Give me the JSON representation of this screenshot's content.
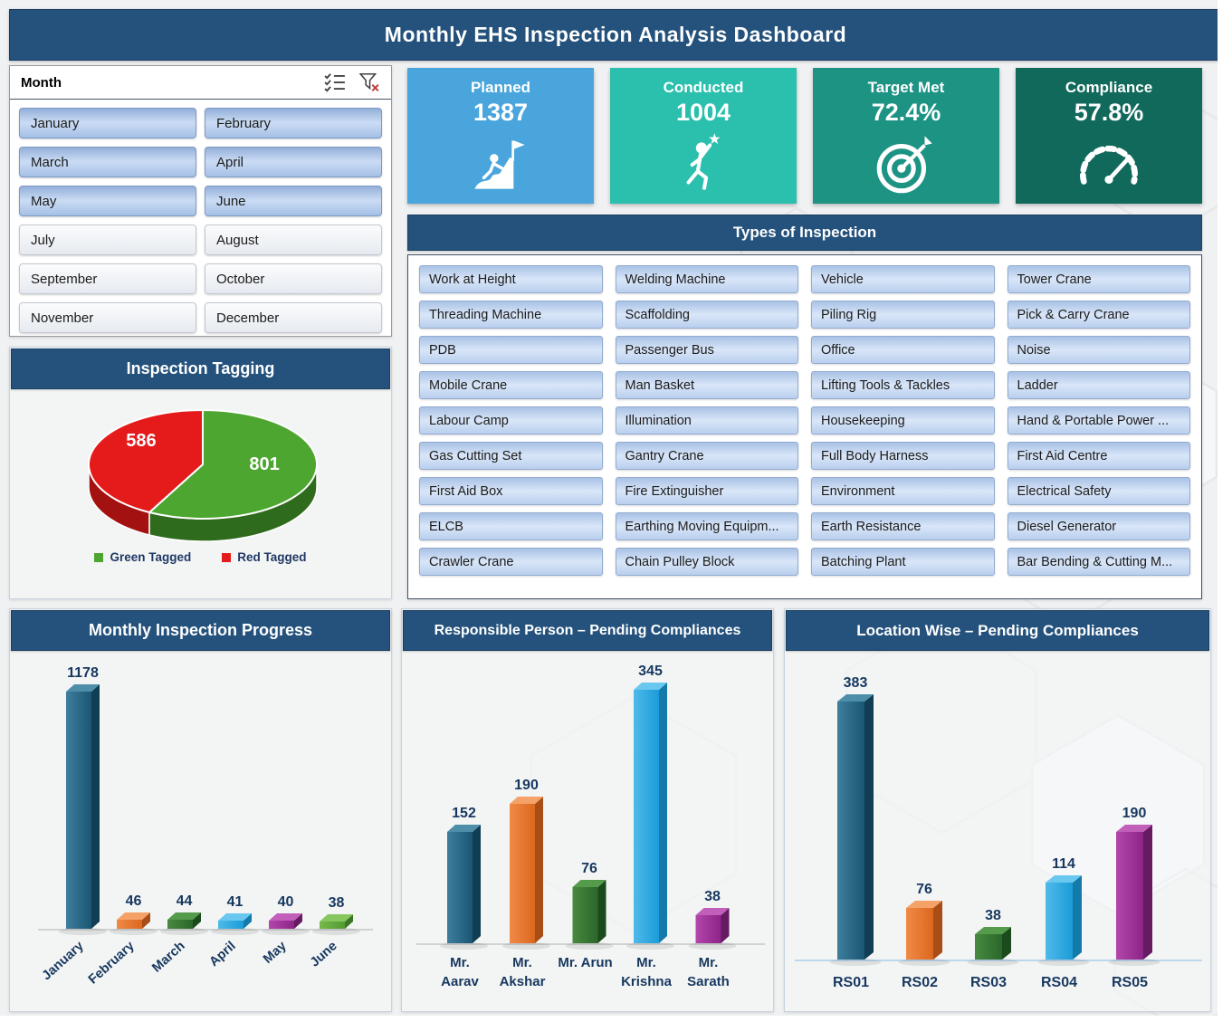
{
  "page_title": "Monthly EHS Inspection Analysis Dashboard",
  "month_slicer": {
    "header": "Month",
    "items": [
      {
        "label": "January",
        "selected": true
      },
      {
        "label": "February",
        "selected": true
      },
      {
        "label": "March",
        "selected": true
      },
      {
        "label": "April",
        "selected": true
      },
      {
        "label": "May",
        "selected": true
      },
      {
        "label": "June",
        "selected": true
      },
      {
        "label": "July",
        "selected": false
      },
      {
        "label": "August",
        "selected": false
      },
      {
        "label": "September",
        "selected": false
      },
      {
        "label": "October",
        "selected": false
      },
      {
        "label": "November",
        "selected": false
      },
      {
        "label": "December",
        "selected": false
      }
    ]
  },
  "kpi_cards": [
    {
      "label": "Planned",
      "value": "1387",
      "icon": "climber-flag-icon",
      "color": "#49A5DC"
    },
    {
      "label": "Conducted",
      "value": "1004",
      "icon": "running-person-star-icon",
      "color": "#2BBFAD"
    },
    {
      "label": "Target Met",
      "value": "72.4%",
      "icon": "target-arrow-icon",
      "color": "#1D9384"
    },
    {
      "label": "Compliance",
      "value": "57.8%",
      "icon": "gauge-icon",
      "color": "#10695A"
    }
  ],
  "types_of_inspection": {
    "header": "Types of Inspection",
    "items": [
      "Work at Height",
      "Welding Machine",
      "Vehicle",
      "Tower Crane",
      "Threading Machine",
      "Scaffolding",
      "Piling Rig",
      "Pick & Carry Crane",
      "PDB",
      "Passenger Bus",
      "Office",
      "Noise",
      "Mobile Crane",
      "Man Basket",
      "Lifting Tools & Tackles",
      "Ladder",
      "Labour Camp",
      "Illumination",
      "Housekeeping",
      "Hand & Portable Power ...",
      "Gas Cutting Set",
      "Gantry Crane",
      "Full Body Harness",
      "First Aid Centre",
      "First Aid Box",
      "Fire Extinguisher",
      "Environment",
      "Electrical Safety",
      "ELCB",
      "Earthing Moving Equipm...",
      "Earth Resistance",
      "Diesel Generator",
      "Crawler Crane",
      "Chain Pulley Block",
      "Batching Plant",
      "Bar Bending & Cutting M..."
    ]
  },
  "section_headers": {
    "tagging": "Inspection Tagging",
    "monthly": "Monthly Inspection Progress",
    "person": "Responsible Person – Pending Compliances",
    "location": "Location Wise – Pending Compliances"
  },
  "palette": {
    "navy": {
      "front1": "#3F7E9D",
      "front2": "#1A5674",
      "side": "#113E55",
      "top": "#4E8EA9"
    },
    "orange": {
      "front1": "#F08A46",
      "front2": "#DC671F",
      "side": "#A84D15",
      "top": "#F5A269"
    },
    "green": {
      "front1": "#478A40",
      "front2": "#2B662A",
      "side": "#1B4A1C",
      "top": "#549B4B"
    },
    "green2": {
      "front1": "#76B94E",
      "front2": "#539A31",
      "side": "#3B7722",
      "top": "#86C75E"
    },
    "lightblue": {
      "front1": "#4FBAEA",
      "front2": "#1B9CD8",
      "side": "#137AA9",
      "top": "#6AC8F0"
    },
    "magenta": {
      "front1": "#B347AB",
      "front2": "#8D2487",
      "side": "#651A61",
      "top": "#C25FBA"
    }
  },
  "value_label_color": "#17375E",
  "chart_data": [
    {
      "id": "tagging-pie",
      "type": "pie",
      "title": "Inspection Tagging",
      "labels": [
        "Green Tagged",
        "Red Tagged"
      ],
      "values": [
        801,
        586
      ],
      "colors": [
        "#4CA62F",
        "#E51A1A"
      ],
      "side_colors": [
        "#2F6B1C",
        "#A31111"
      ],
      "legend_position": "bottom"
    },
    {
      "id": "monthly-bars",
      "type": "bar",
      "title": "Monthly Inspection Progress",
      "categories": [
        "January",
        "February",
        "March",
        "April",
        "May",
        "June"
      ],
      "values": [
        1178,
        46,
        44,
        41,
        40,
        38
      ],
      "bar_colors": [
        "navy",
        "orange",
        "green",
        "lightblue",
        "magenta",
        "green2"
      ],
      "ylim": [
        0,
        1178
      ],
      "grid": false,
      "data_labels": true
    },
    {
      "id": "person-bars",
      "type": "bar",
      "title": "Responsible Person – Pending Compliances",
      "categories": [
        "Mr. Aarav",
        "Mr. Akshar",
        "Mr. Arun",
        "Mr. Krishna",
        "Mr. Sarath"
      ],
      "categories_lines": [
        [
          "Mr.",
          "Aarav"
        ],
        [
          "Mr.",
          "Akshar"
        ],
        [
          "Mr. Arun"
        ],
        [
          "Mr.",
          "Krishna"
        ],
        [
          "Mr.",
          "Sarath"
        ]
      ],
      "values": [
        152,
        190,
        76,
        345,
        38
      ],
      "bar_colors": [
        "navy",
        "orange",
        "green",
        "lightblue",
        "magenta"
      ],
      "ylim": [
        0,
        345
      ],
      "grid": false,
      "data_labels": true
    },
    {
      "id": "location-bars",
      "type": "bar",
      "title": "Location Wise – Pending Compliances",
      "categories": [
        "RS01",
        "RS02",
        "RS03",
        "RS04",
        "RS05"
      ],
      "values": [
        383,
        76,
        38,
        114,
        190
      ],
      "bar_colors": [
        "navy",
        "orange",
        "green",
        "lightblue",
        "magenta"
      ],
      "ylim": [
        0,
        383
      ],
      "grid": false,
      "data_labels": true
    }
  ]
}
